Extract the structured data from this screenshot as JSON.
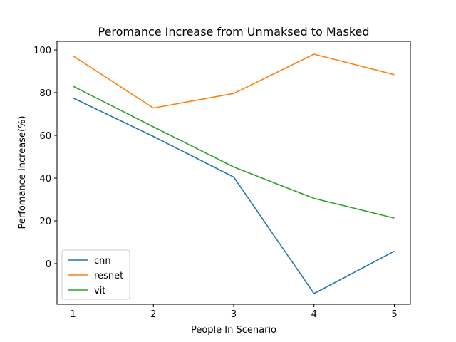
{
  "chart_data": {
    "type": "line",
    "title": "Peromance Increase from Unmaksed to Masked",
    "xlabel": "People In Scenario",
    "ylabel": "Perfomance Increase(%)",
    "x": [
      1,
      2,
      3,
      4,
      5
    ],
    "xticks": [
      "1",
      "2",
      "3",
      "4",
      "5"
    ],
    "yticks": [
      "0",
      "20",
      "40",
      "60",
      "80",
      "100"
    ],
    "xlim": [
      0.8,
      5.2
    ],
    "ylim": [
      -19,
      104
    ],
    "grid": false,
    "legend_position": "lower-left",
    "series": [
      {
        "name": "cnn",
        "color": "#1f77b4",
        "values": [
          77.5,
          59.5,
          40.5,
          -14.0,
          5.8
        ]
      },
      {
        "name": "resnet",
        "color": "#ff7f0e",
        "values": [
          97.2,
          72.8,
          79.6,
          98.0,
          88.4
        ]
      },
      {
        "name": "vit",
        "color": "#2ca02c",
        "values": [
          83.0,
          64.0,
          45.2,
          30.5,
          21.3
        ]
      }
    ]
  }
}
